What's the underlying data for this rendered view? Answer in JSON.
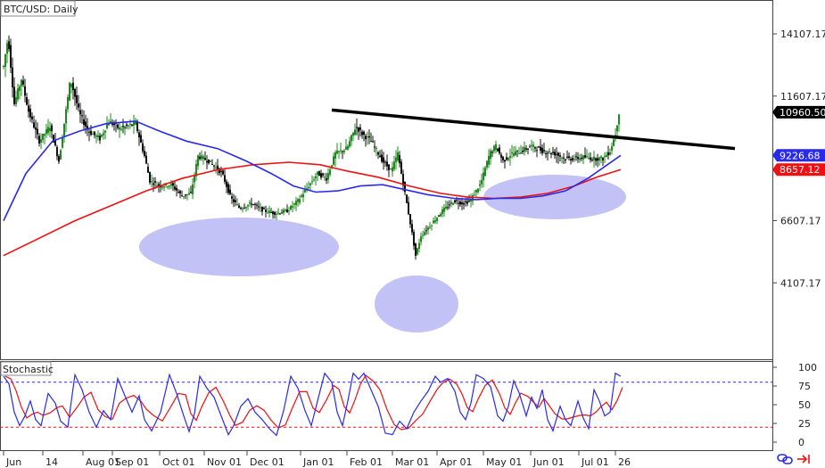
{
  "title": "BTC/USD: Daily",
  "indicator_label": "Stochastic",
  "colors": {
    "up": "#1f8a1f",
    "down": "#111111",
    "sma_fast": "#2a2aee",
    "sma_slow": "#ee1111",
    "trendline": "#000000",
    "ellipse": "#8f8ff0",
    "stoch_k": "#2a2aee",
    "stoch_d": "#ee1111",
    "tag_last": "#000000",
    "tag_blue": "#2a2aee",
    "tag_red": "#ee1111"
  },
  "chart_data": {
    "type": "line",
    "subtype": "candlestick",
    "y_ticks": [
      "14107.17",
      "11607.17",
      "6607.17",
      "4107.17"
    ],
    "y_tick_values": [
      14107.17,
      11607.17,
      6607.17,
      4107.17
    ],
    "price_tags": [
      {
        "name": "last",
        "text": "10960.50",
        "value": 10960.5
      },
      {
        "name": "sma-blue",
        "text": "9226.68",
        "value": 9226.68
      },
      {
        "name": "sma-red",
        "text": "8657.12",
        "value": 8657.12
      }
    ],
    "x_labels": [
      "Jun",
      "14",
      "Aug 01",
      "Sep 01",
      "Oct 01",
      "Nov 01",
      "Dec 01",
      "Jan 01",
      "Feb 01",
      "Mar 01",
      "Apr 01",
      "May 01",
      "Jun 01",
      "Jul 01",
      "26"
    ],
    "x_label_days": [
      0,
      44,
      89,
      122,
      175,
      225,
      273,
      333,
      385,
      436,
      486,
      538,
      591,
      645,
      686
    ],
    "price_path": [
      [
        0,
        12800
      ],
      [
        5,
        14000
      ],
      [
        12,
        11300
      ],
      [
        20,
        12300
      ],
      [
        28,
        11000
      ],
      [
        40,
        9800
      ],
      [
        52,
        10400
      ],
      [
        62,
        9000
      ],
      [
        75,
        12300
      ],
      [
        85,
        10900
      ],
      [
        95,
        10200
      ],
      [
        108,
        9900
      ],
      [
        118,
        10600
      ],
      [
        130,
        10300
      ],
      [
        148,
        10500
      ],
      [
        158,
        9200
      ],
      [
        164,
        8200
      ],
      [
        175,
        8000
      ],
      [
        188,
        8050
      ],
      [
        200,
        7600
      ],
      [
        210,
        7700
      ],
      [
        218,
        9200
      ],
      [
        230,
        9000
      ],
      [
        245,
        8500
      ],
      [
        255,
        7500
      ],
      [
        265,
        7100
      ],
      [
        278,
        7300
      ],
      [
        292,
        7000
      ],
      [
        305,
        6900
      ],
      [
        318,
        7000
      ],
      [
        330,
        7400
      ],
      [
        340,
        7900
      ],
      [
        352,
        8500
      ],
      [
        362,
        8300
      ],
      [
        372,
        9300
      ],
      [
        385,
        9500
      ],
      [
        395,
        10400
      ],
      [
        402,
        10100
      ],
      [
        412,
        9800
      ],
      [
        425,
        9000
      ],
      [
        435,
        8600
      ],
      [
        442,
        9300
      ],
      [
        452,
        7300
      ],
      [
        458,
        6100
      ],
      [
        462,
        5200
      ],
      [
        468,
        6000
      ],
      [
        478,
        6400
      ],
      [
        492,
        7000
      ],
      [
        505,
        7400
      ],
      [
        515,
        7300
      ],
      [
        523,
        7400
      ],
      [
        535,
        8100
      ],
      [
        545,
        9300
      ],
      [
        552,
        9600
      ],
      [
        560,
        9000
      ],
      [
        570,
        9300
      ],
      [
        580,
        9400
      ],
      [
        592,
        9600
      ],
      [
        605,
        9400
      ],
      [
        618,
        9300
      ],
      [
        630,
        9100
      ],
      [
        640,
        9100
      ],
      [
        652,
        9150
      ],
      [
        662,
        9100
      ],
      [
        672,
        9100
      ],
      [
        680,
        9400
      ],
      [
        686,
        10100
      ],
      [
        690,
        10960.5
      ]
    ],
    "sma_fast_path": [
      [
        0,
        6600
      ],
      [
        25,
        8500
      ],
      [
        55,
        9800
      ],
      [
        85,
        10200
      ],
      [
        115,
        10500
      ],
      [
        148,
        10600
      ],
      [
        175,
        10200
      ],
      [
        205,
        9800
      ],
      [
        240,
        9500
      ],
      [
        272,
        9000
      ],
      [
        300,
        8500
      ],
      [
        325,
        8000
      ],
      [
        350,
        7750
      ],
      [
        375,
        7800
      ],
      [
        400,
        8000
      ],
      [
        425,
        8050
      ],
      [
        450,
        7850
      ],
      [
        475,
        7650
      ],
      [
        505,
        7500
      ],
      [
        530,
        7450
      ],
      [
        555,
        7500
      ],
      [
        580,
        7500
      ],
      [
        605,
        7600
      ],
      [
        630,
        7800
      ],
      [
        655,
        8300
      ],
      [
        675,
        8800
      ],
      [
        692,
        9226.68
      ]
    ],
    "sma_slow_path": [
      [
        0,
        5200
      ],
      [
        40,
        5900
      ],
      [
        80,
        6600
      ],
      [
        120,
        7200
      ],
      [
        160,
        7800
      ],
      [
        200,
        8300
      ],
      [
        240,
        8650
      ],
      [
        280,
        8850
      ],
      [
        320,
        8950
      ],
      [
        355,
        8850
      ],
      [
        385,
        8600
      ],
      [
        420,
        8350
      ],
      [
        455,
        8000
      ],
      [
        490,
        7700
      ],
      [
        520,
        7550
      ],
      [
        550,
        7500
      ],
      [
        580,
        7550
      ],
      [
        610,
        7700
      ],
      [
        640,
        8000
      ],
      [
        665,
        8350
      ],
      [
        692,
        8657.12
      ]
    ],
    "trendline": [
      [
        368,
        11050
      ],
      [
        820,
        9500
      ]
    ],
    "stochastic": {
      "y_ticks": [
        100,
        75,
        50,
        25,
        0
      ],
      "levels": [
        80,
        20
      ],
      "k_path": [
        [
          0,
          88
        ],
        [
          6,
          78
        ],
        [
          12,
          40
        ],
        [
          18,
          22
        ],
        [
          24,
          35
        ],
        [
          30,
          55
        ],
        [
          36,
          30
        ],
        [
          42,
          22
        ],
        [
          50,
          65
        ],
        [
          58,
          52
        ],
        [
          64,
          28
        ],
        [
          72,
          20
        ],
        [
          80,
          90
        ],
        [
          88,
          70
        ],
        [
          96,
          40
        ],
        [
          104,
          20
        ],
        [
          112,
          42
        ],
        [
          120,
          30
        ],
        [
          128,
          85
        ],
        [
          136,
          62
        ],
        [
          144,
          40
        ],
        [
          152,
          62
        ],
        [
          158,
          30
        ],
        [
          166,
          15
        ],
        [
          176,
          40
        ],
        [
          186,
          90
        ],
        [
          194,
          65
        ],
        [
          202,
          35
        ],
        [
          208,
          14
        ],
        [
          214,
          38
        ],
        [
          220,
          88
        ],
        [
          228,
          72
        ],
        [
          236,
          60
        ],
        [
          244,
          35
        ],
        [
          252,
          10
        ],
        [
          258,
          22
        ],
        [
          266,
          48
        ],
        [
          274,
          58
        ],
        [
          282,
          40
        ],
        [
          290,
          30
        ],
        [
          298,
          18
        ],
        [
          306,
          9
        ],
        [
          314,
          42
        ],
        [
          322,
          88
        ],
        [
          330,
          72
        ],
        [
          338,
          42
        ],
        [
          345,
          22
        ],
        [
          352,
          55
        ],
        [
          360,
          92
        ],
        [
          368,
          80
        ],
        [
          374,
          40
        ],
        [
          380,
          22
        ],
        [
          386,
          55
        ],
        [
          392,
          92
        ],
        [
          398,
          84
        ],
        [
          404,
          92
        ],
        [
          412,
          70
        ],
        [
          420,
          48
        ],
        [
          428,
          12
        ],
        [
          436,
          10
        ],
        [
          444,
          28
        ],
        [
          452,
          18
        ],
        [
          460,
          40
        ],
        [
          468,
          55
        ],
        [
          476,
          68
        ],
        [
          484,
          88
        ],
        [
          490,
          80
        ],
        [
          498,
          85
        ],
        [
          506,
          68
        ],
        [
          512,
          40
        ],
        [
          518,
          30
        ],
        [
          524,
          52
        ],
        [
          530,
          90
        ],
        [
          538,
          85
        ],
        [
          546,
          74
        ],
        [
          554,
          35
        ],
        [
          560,
          28
        ],
        [
          566,
          48
        ],
        [
          572,
          82
        ],
        [
          578,
          66
        ],
        [
          586,
          35
        ],
        [
          592,
          60
        ],
        [
          598,
          45
        ],
        [
          604,
          70
        ],
        [
          610,
          30
        ],
        [
          616,
          15
        ],
        [
          624,
          48
        ],
        [
          630,
          30
        ],
        [
          636,
          22
        ],
        [
          644,
          55
        ],
        [
          650,
          32
        ],
        [
          656,
          18
        ],
        [
          662,
          70
        ],
        [
          668,
          55
        ],
        [
          674,
          35
        ],
        [
          680,
          40
        ],
        [
          686,
          92
        ],
        [
          692,
          88
        ]
      ]
    }
  }
}
